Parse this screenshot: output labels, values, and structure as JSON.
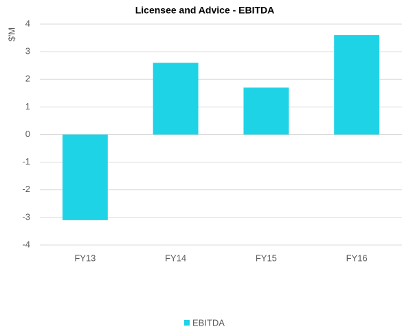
{
  "chart_data": {
    "type": "bar",
    "title": "Licensee and Advice  - EBITDA",
    "y_label": "$'M",
    "categories": [
      "FY13",
      "FY14",
      "FY15",
      "FY16"
    ],
    "series": [
      {
        "name": "EBITDA",
        "color": "#1fd3e6",
        "values": [
          -3.1,
          2.6,
          1.7,
          3.6
        ]
      }
    ],
    "ylim": [
      -4,
      4
    ],
    "yticks": [
      -4,
      -3,
      -2,
      -1,
      0,
      1,
      2,
      3,
      4
    ],
    "grid": true,
    "legend": "bottom"
  }
}
